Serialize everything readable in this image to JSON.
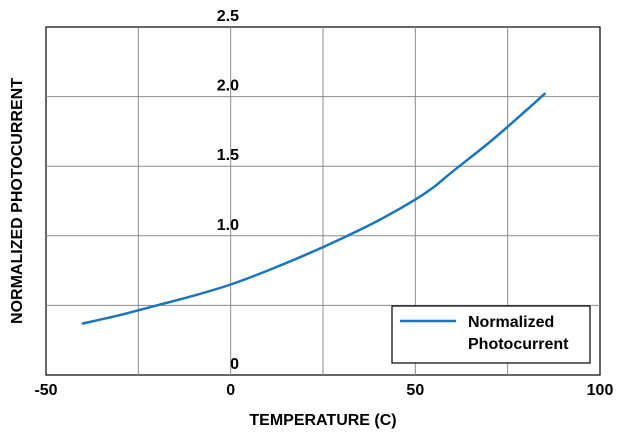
{
  "chart_data": {
    "type": "line",
    "xlabel": "TEMPERATURE (C)",
    "ylabel": "NORMALIZED PHOTOCURRENT",
    "xlim": [
      -50,
      100
    ],
    "ylim": [
      0,
      2.5
    ],
    "x_ticks": [
      -50,
      -25,
      0,
      25,
      50,
      75,
      100
    ],
    "x_tick_labels": [
      "-50",
      "",
      "0",
      "",
      "50",
      "",
      "100"
    ],
    "y_ticks": [
      0,
      0.5,
      1.0,
      1.5,
      2.0,
      2.5
    ],
    "y_tick_labels": [
      "0",
      "",
      "1.0",
      "1.5",
      "2.0",
      "2.5"
    ],
    "grid": true,
    "legend": "bottom-right",
    "series": [
      {
        "name": "Normalized Photocurrent",
        "color": "#1b75bb",
        "x": [
          -40,
          -30,
          -20,
          -10,
          0,
          10,
          20,
          30,
          40,
          50,
          55,
          60,
          70,
          80,
          85
        ],
        "y": [
          0.37,
          0.43,
          0.5,
          0.57,
          0.65,
          0.75,
          0.86,
          0.98,
          1.11,
          1.26,
          1.35,
          1.46,
          1.67,
          1.9,
          2.02
        ]
      }
    ]
  }
}
